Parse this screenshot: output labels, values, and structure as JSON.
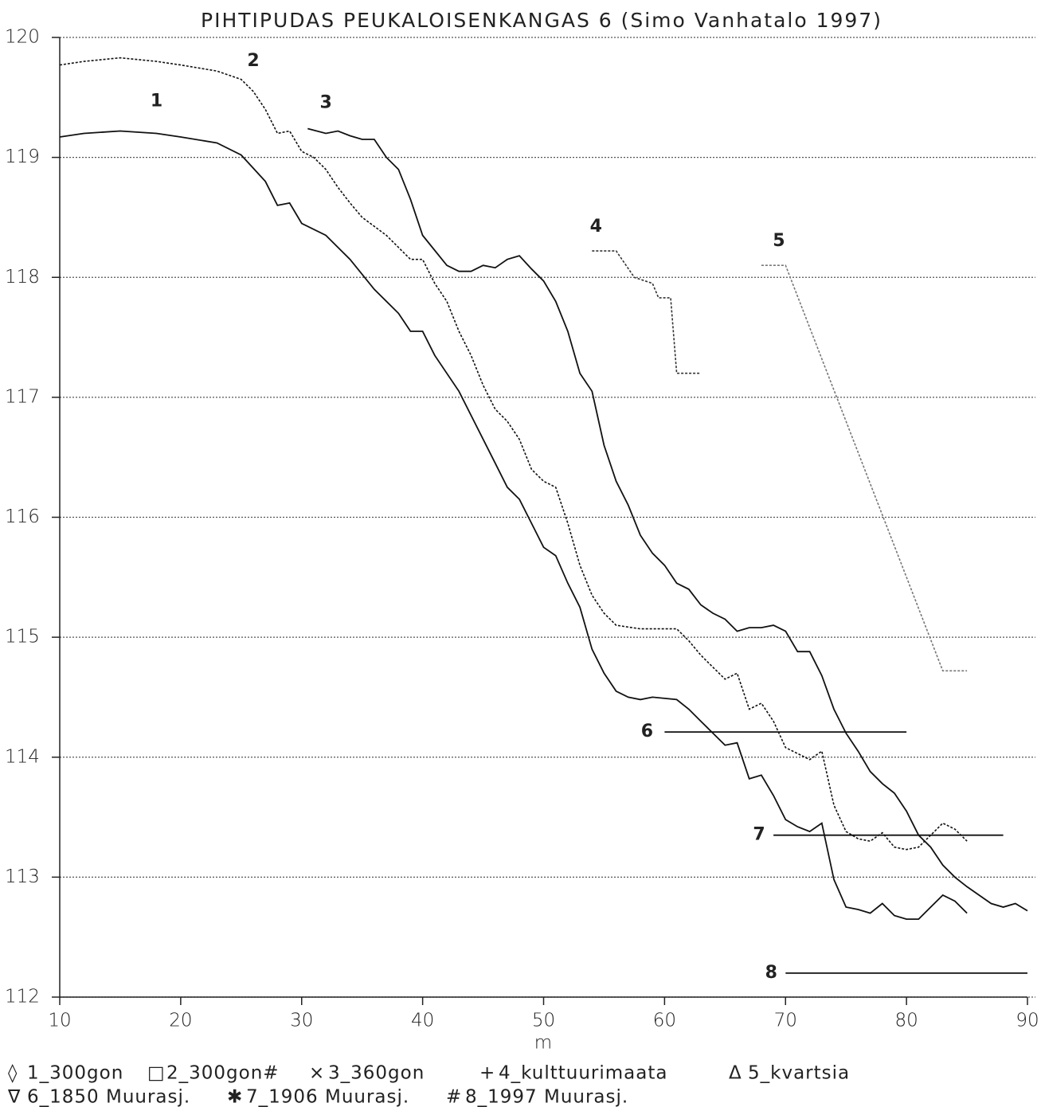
{
  "chart_data": {
    "type": "line",
    "title": "PIHTIPUDAS PEUKALOISENKANGAS 6 (Simo Vanhatalo 1997)",
    "x_label": "m",
    "xlim": [
      10,
      90
    ],
    "xticks": [
      10,
      20,
      30,
      40,
      50,
      60,
      70,
      80,
      90
    ],
    "ylim": [
      112,
      120
    ],
    "yticks": [
      112,
      113,
      114,
      115,
      116,
      117,
      118,
      119,
      120
    ],
    "grid": true,
    "line_labels": [
      "1",
      "2",
      "3",
      "4",
      "5",
      "6",
      "7",
      "8"
    ],
    "series": [
      {
        "name": "1_300gon",
        "marker": "◊",
        "color": "#111111",
        "style": "solid",
        "x": [
          10,
          12,
          15,
          18,
          20,
          23,
          25,
          27,
          28,
          29,
          30,
          32,
          34,
          36,
          38,
          39,
          40,
          41,
          43,
          44,
          46,
          47,
          48,
          49,
          50,
          51,
          52,
          53,
          54,
          55,
          56,
          57,
          58,
          59,
          61,
          62,
          63,
          64,
          65,
          66,
          67,
          68,
          69,
          70,
          71,
          72,
          73,
          74,
          75,
          76,
          77,
          78,
          79,
          80,
          81,
          82,
          83,
          84,
          85
        ],
        "values": [
          119.17,
          119.2,
          119.22,
          119.2,
          119.17,
          119.12,
          119.02,
          118.8,
          118.6,
          118.62,
          118.45,
          118.35,
          118.15,
          117.9,
          117.7,
          117.55,
          117.55,
          117.35,
          117.05,
          116.85,
          116.45,
          116.25,
          116.15,
          115.95,
          115.75,
          115.68,
          115.45,
          115.25,
          114.9,
          114.7,
          114.55,
          114.5,
          114.48,
          114.5,
          114.48,
          114.4,
          114.3,
          114.2,
          114.1,
          114.12,
          113.82,
          113.85,
          113.68,
          113.48,
          113.42,
          113.38,
          113.45,
          112.98,
          112.75,
          112.73,
          112.7,
          112.78,
          112.68,
          112.65,
          112.65,
          112.75,
          112.85,
          112.8,
          112.7
        ]
      },
      {
        "name": "2_300gon#",
        "marker": "□",
        "color": "#111111",
        "style": "dotted",
        "x": [
          10,
          12,
          15,
          18,
          20,
          23,
          25,
          26,
          27,
          28,
          29,
          30,
          31,
          32,
          33,
          34,
          35,
          37,
          39,
          40,
          41,
          42,
          43,
          44,
          45,
          46,
          47,
          48,
          49,
          50,
          51,
          52,
          53,
          54,
          55,
          56,
          58,
          61,
          62,
          63,
          64,
          65,
          66,
          67,
          68,
          69,
          70,
          71,
          72,
          73,
          74,
          75,
          76,
          77,
          78,
          79,
          80,
          81,
          82,
          83,
          84,
          85
        ],
        "values": [
          119.77,
          119.8,
          119.83,
          119.8,
          119.77,
          119.72,
          119.65,
          119.55,
          119.4,
          119.2,
          119.22,
          119.05,
          119.0,
          118.9,
          118.75,
          118.62,
          118.5,
          118.35,
          118.15,
          118.15,
          117.95,
          117.8,
          117.55,
          117.35,
          117.1,
          116.9,
          116.8,
          116.65,
          116.4,
          116.3,
          116.25,
          115.95,
          115.6,
          115.35,
          115.2,
          115.1,
          115.07,
          115.07,
          114.97,
          114.85,
          114.75,
          114.65,
          114.7,
          114.4,
          114.45,
          114.3,
          114.08,
          114.03,
          113.98,
          114.05,
          113.6,
          113.38,
          113.32,
          113.3,
          113.37,
          113.25,
          113.23,
          113.25,
          113.35,
          113.45,
          113.4,
          113.3
        ]
      },
      {
        "name": "3_360gon",
        "marker": "×",
        "color": "#111111",
        "style": "solid",
        "x": [
          30.5,
          32,
          33,
          34,
          35,
          36,
          37,
          38,
          39,
          40,
          42,
          43,
          44,
          45,
          46,
          47,
          48,
          49,
          50,
          51,
          52,
          53,
          54,
          55,
          56,
          57,
          58,
          59,
          60,
          61,
          62,
          63,
          64,
          65,
          66,
          67,
          68,
          69,
          70,
          71,
          72,
          73,
          74,
          75,
          76,
          77,
          78,
          79,
          80,
          81,
          82,
          83,
          84,
          85,
          86,
          87,
          88,
          89,
          90
        ],
        "values": [
          119.24,
          119.2,
          119.22,
          119.18,
          119.15,
          119.15,
          119.0,
          118.9,
          118.65,
          118.35,
          118.1,
          118.05,
          118.05,
          118.1,
          118.08,
          118.15,
          118.18,
          118.07,
          117.97,
          117.8,
          117.55,
          117.2,
          117.05,
          116.6,
          116.3,
          116.1,
          115.85,
          115.7,
          115.6,
          115.45,
          115.4,
          115.27,
          115.2,
          115.15,
          115.05,
          115.08,
          115.08,
          115.1,
          115.05,
          114.88,
          114.88,
          114.68,
          114.4,
          114.2,
          114.05,
          113.88,
          113.78,
          113.7,
          113.55,
          113.35,
          113.25,
          113.1,
          113.0,
          112.92,
          112.85,
          112.78,
          112.75,
          112.78,
          112.72
        ]
      },
      {
        "name": "4_kulttuurimaata",
        "marker": "+",
        "color": "#333333",
        "style": "dotted",
        "x": [
          54,
          56,
          57.5,
          59,
          59.5,
          60.5,
          61,
          63
        ],
        "values": [
          118.22,
          118.22,
          118.0,
          117.95,
          117.83,
          117.83,
          117.2,
          117.2
        ]
      },
      {
        "name": "5_kvartsia",
        "marker": "Δ",
        "color": "#777777",
        "style": "dotted",
        "x": [
          68,
          70,
          83,
          85
        ],
        "values": [
          118.1,
          118.1,
          114.72,
          114.72
        ]
      },
      {
        "name": "6_1850 Muurasj.",
        "marker": "∇",
        "color": "#111111",
        "style": "solid",
        "x": [
          60,
          80
        ],
        "values": [
          114.21,
          114.21
        ]
      },
      {
        "name": "7_1906 Muurasj.",
        "marker": "✱",
        "color": "#111111",
        "style": "solid",
        "x": [
          69,
          88
        ],
        "values": [
          113.35,
          113.35
        ]
      },
      {
        "name": "8_1997 Muurasj.",
        "marker": "#",
        "color": "#111111",
        "style": "solid",
        "x": [
          70,
          90
        ],
        "values": [
          112.2,
          112.2
        ]
      }
    ]
  }
}
